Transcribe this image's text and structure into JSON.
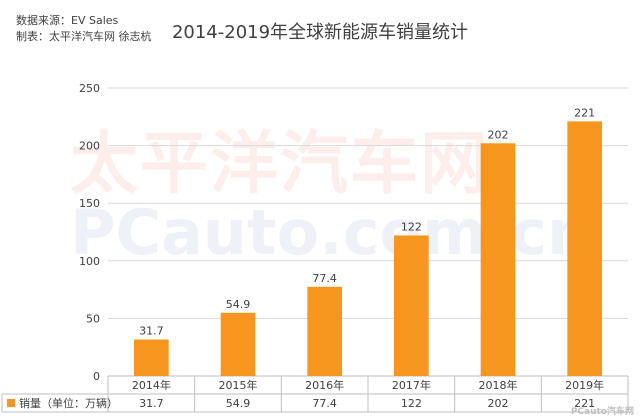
{
  "source": {
    "line1": "数据来源：EV Sales",
    "line2": "制表：太平洋汽车网 徐志杭"
  },
  "watermark": {
    "cn": "太平洋汽车网",
    "en": "PCauto.com.cn",
    "corner": "PCauto汽车网"
  },
  "colors": {
    "bar": "#f7961e",
    "grid": "#d9d9d9",
    "text": "#404040"
  },
  "chart_data": {
    "type": "bar",
    "title": "2014-2019年全球新能源车销量统计",
    "categories": [
      "2014年",
      "2015年",
      "2016年",
      "2017年",
      "2018年",
      "2019年"
    ],
    "series": [
      {
        "name": "销量（单位：万辆）",
        "values": [
          31.7,
          54.9,
          77.4,
          122,
          202,
          221
        ],
        "labels": [
          "31.7",
          "54.9",
          "77.4",
          "122",
          "202",
          "221"
        ],
        "color": "#f7961e"
      }
    ],
    "y_ticks": [
      "0",
      "50",
      "100",
      "150",
      "200",
      "250"
    ],
    "ylim": [
      0,
      250
    ],
    "grid": true,
    "legend": "data-table-bottom"
  }
}
